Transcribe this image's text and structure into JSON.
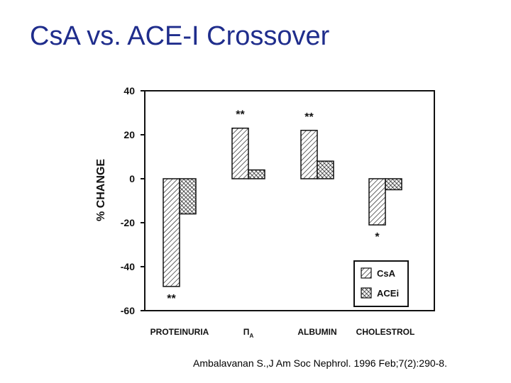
{
  "slide": {
    "title": "CsA vs. ACE-I Crossover",
    "citation": "Ambalavanan S.,J Am Soc Nephrol. 1996 Feb;7(2):290-8."
  },
  "chart_data": {
    "type": "bar",
    "title": "",
    "ylabel": "% CHANGE",
    "xlabel": "",
    "ylim": [
      -60,
      40
    ],
    "yticks": [
      40,
      20,
      0,
      -20,
      -40,
      -60
    ],
    "ytick_labels": [
      "40",
      "20",
      "0",
      "-20",
      "-40",
      "-60"
    ],
    "categories": [
      "PROTEINURIA",
      "Π",
      "ALBUMIN",
      "CHOLESTROL"
    ],
    "category_subscripts": [
      "",
      "A",
      "",
      ""
    ],
    "series": [
      {
        "name": "CsA",
        "values": [
          -49,
          23,
          22,
          -21
        ],
        "pattern": "diag-forward"
      },
      {
        "name": "ACEi",
        "values": [
          -16,
          4,
          8,
          -5
        ],
        "pattern": "diag-back"
      }
    ],
    "annotations": [
      {
        "category": "PROTEINURIA",
        "series": "CsA",
        "text": "**",
        "position": "below"
      },
      {
        "category": "Π",
        "series": "CsA",
        "text": "**",
        "position": "above"
      },
      {
        "category": "ALBUMIN",
        "series": "CsA",
        "text": "**",
        "position": "above"
      },
      {
        "category": "CHOLESTROL",
        "series": "CsA",
        "text": "*",
        "position": "below"
      }
    ],
    "legend": {
      "position": "bottom-right",
      "entries": [
        "CsA",
        "ACEi"
      ]
    }
  }
}
